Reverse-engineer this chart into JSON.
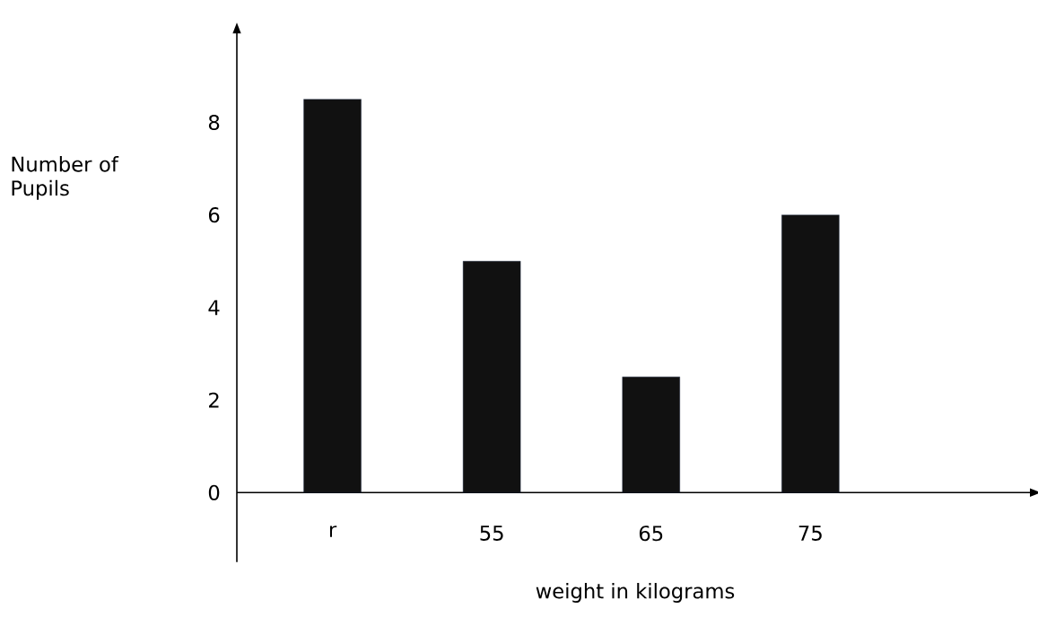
{
  "chart_data": {
    "type": "bar",
    "categories": [
      "r",
      "55",
      "65",
      "75"
    ],
    "values": [
      8.5,
      5,
      2.5,
      6
    ],
    "color": "#111111",
    "ylim": [
      -1.5,
      10
    ],
    "yticks": [
      0,
      2,
      4,
      6,
      8
    ],
    "xlabel": "weight in kilograms",
    "ylabel": "Number of Pupils"
  }
}
